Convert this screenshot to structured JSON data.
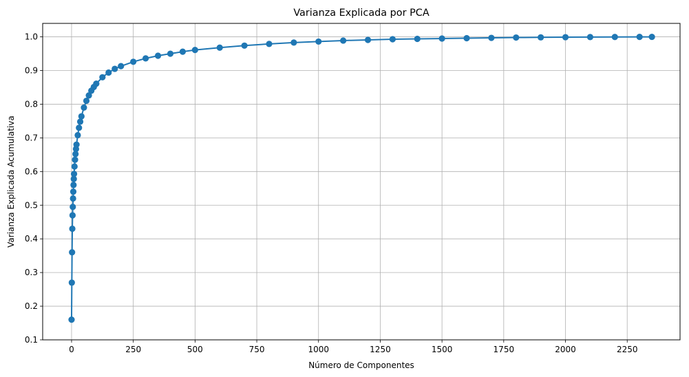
{
  "chart_data": {
    "type": "line",
    "title": "Varianza Explicada por PCA",
    "xlabel": "Número de Componentes",
    "ylabel": "Varianza Explicada Acumulativa",
    "xlim": [
      -117,
      2464
    ],
    "ylim": [
      0.1,
      1.04
    ],
    "xticks": [
      0,
      250,
      500,
      750,
      1000,
      1250,
      1500,
      1750,
      2000,
      2250
    ],
    "xtick_labels": [
      "0",
      "250",
      "500",
      "750",
      "1000",
      "1250",
      "1500",
      "1750",
      "2000",
      "2250"
    ],
    "yticks": [
      0.1,
      0.2,
      0.3,
      0.4,
      0.5,
      0.6,
      0.7,
      0.8,
      0.9,
      1.0
    ],
    "ytick_labels": [
      "0.1",
      "0.2",
      "0.3",
      "0.4",
      "0.5",
      "0.6",
      "0.7",
      "0.8",
      "0.9",
      "1.0"
    ],
    "grid": true,
    "marker": "circle",
    "color": "#1f77b4",
    "series": [
      {
        "x": [
          0,
          1,
          2,
          3,
          4,
          5,
          6,
          7,
          8,
          9,
          10,
          12,
          14,
          16,
          18,
          20,
          25,
          30,
          35,
          40,
          50,
          60,
          70,
          80,
          90,
          100,
          125,
          150,
          175,
          200,
          250,
          300,
          350,
          400,
          450,
          500,
          600,
          700,
          800,
          900,
          1000,
          1100,
          1200,
          1300,
          1400,
          1500,
          1600,
          1700,
          1800,
          1900,
          2000,
          2100,
          2200,
          2300,
          2350
        ],
        "y": [
          0.16,
          0.27,
          0.36,
          0.43,
          0.47,
          0.495,
          0.52,
          0.54,
          0.56,
          0.578,
          0.593,
          0.615,
          0.635,
          0.652,
          0.667,
          0.68,
          0.708,
          0.73,
          0.748,
          0.764,
          0.79,
          0.81,
          0.826,
          0.84,
          0.851,
          0.861,
          0.88,
          0.894,
          0.905,
          0.913,
          0.926,
          0.936,
          0.944,
          0.95,
          0.956,
          0.961,
          0.968,
          0.974,
          0.979,
          0.983,
          0.986,
          0.989,
          0.991,
          0.993,
          0.994,
          0.995,
          0.996,
          0.997,
          0.998,
          0.9985,
          0.999,
          0.9994,
          0.9997,
          0.9999,
          1.0
        ]
      }
    ]
  }
}
